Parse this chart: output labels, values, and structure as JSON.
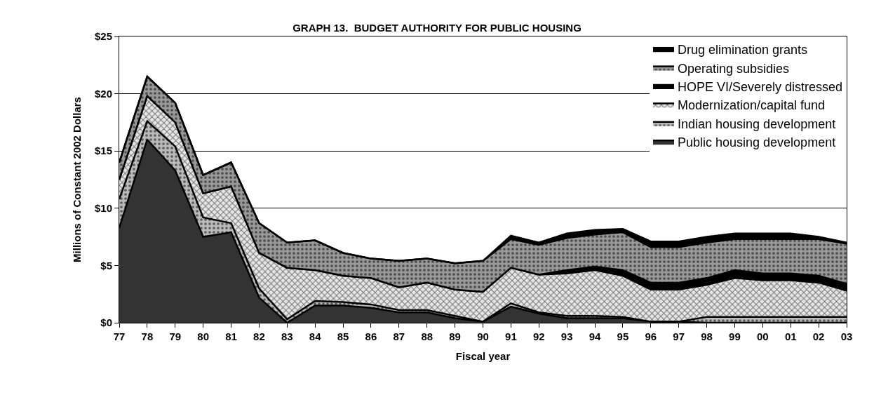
{
  "chart_data": {
    "type": "area",
    "stacked": true,
    "title": "GRAPH 13.  BUDGET AUTHORITY FOR PUBLIC HOUSING",
    "xlabel": "Fiscal year",
    "ylabel": "Millions of Constant 2002 Dollars",
    "categories": [
      "77",
      "78",
      "79",
      "80",
      "81",
      "82",
      "83",
      "84",
      "85",
      "86",
      "87",
      "88",
      "89",
      "90",
      "91",
      "92",
      "93",
      "94",
      "95",
      "96",
      "97",
      "98",
      "99",
      "00",
      "01",
      "02",
      "03"
    ],
    "series": [
      {
        "name": "Public housing development",
        "color": "#333333",
        "values": [
          8.3,
          16.0,
          13.3,
          7.5,
          7.9,
          2.2,
          0.0,
          1.5,
          1.5,
          1.3,
          0.9,
          0.9,
          0.4,
          0.1,
          1.4,
          0.8,
          0.4,
          0.4,
          0.4,
          0.1,
          0.1,
          0,
          0,
          0,
          0,
          0,
          0
        ]
      },
      {
        "name": "Indian housing development",
        "color": "#bbbbbb",
        "values": [
          2.5,
          1.6,
          2.1,
          1.7,
          0.8,
          0.8,
          0.3,
          0.4,
          0.3,
          0.3,
          0.2,
          0.2,
          0.2,
          0.0,
          0.3,
          0.1,
          0.2,
          0.2,
          0.1,
          0,
          0,
          0.5,
          0.5,
          0.5,
          0.5,
          0.5,
          0.5
        ]
      },
      {
        "name": "Modernization/capital fund",
        "color": "#e6e6e6",
        "values": [
          1.7,
          2.2,
          2.1,
          2.1,
          3.2,
          3.1,
          4.5,
          2.7,
          2.3,
          2.3,
          2.0,
          2.4,
          2.3,
          2.6,
          3.1,
          3.3,
          3.7,
          4.0,
          3.6,
          2.8,
          2.8,
          2.8,
          3.4,
          3.2,
          3.2,
          3.0,
          2.3
        ]
      },
      {
        "name": "HOPE VI/Severely distressed",
        "color": "#000000",
        "values": [
          0,
          0,
          0,
          0,
          0,
          0,
          0,
          0,
          0,
          0,
          0,
          0,
          0,
          0,
          0,
          0,
          0.3,
          0.3,
          0.5,
          0.6,
          0.6,
          0.6,
          0.7,
          0.6,
          0.6,
          0.6,
          0.6
        ]
      },
      {
        "name": "Operating subsidies",
        "color": "#999999",
        "values": [
          1.5,
          1.7,
          1.7,
          1.6,
          2.1,
          2.6,
          2.2,
          2.6,
          2.0,
          1.7,
          2.3,
          2.1,
          2.3,
          2.7,
          2.5,
          2.6,
          2.8,
          2.8,
          3.3,
          3.1,
          3.1,
          3.1,
          2.7,
          3.0,
          3.0,
          3.2,
          3.5
        ]
      },
      {
        "name": "Drug elimination grants",
        "color": "#000000",
        "values": [
          0,
          0,
          0,
          0,
          0,
          0,
          0,
          0,
          0,
          0,
          0,
          0,
          0,
          0,
          0.3,
          0.2,
          0.4,
          0.4,
          0.3,
          0.5,
          0.5,
          0.5,
          0.5,
          0.5,
          0.5,
          0.2,
          0.1
        ]
      }
    ],
    "ylim": [
      0,
      25
    ],
    "yticks": [
      {
        "value": 0,
        "label": "$0"
      },
      {
        "value": 5,
        "label": "$5"
      },
      {
        "value": 10,
        "label": "$10"
      },
      {
        "value": 15,
        "label": "$15"
      },
      {
        "value": 20,
        "label": "$20"
      },
      {
        "value": 25,
        "label": "$25"
      }
    ],
    "grid": "y",
    "legend": "top right"
  }
}
